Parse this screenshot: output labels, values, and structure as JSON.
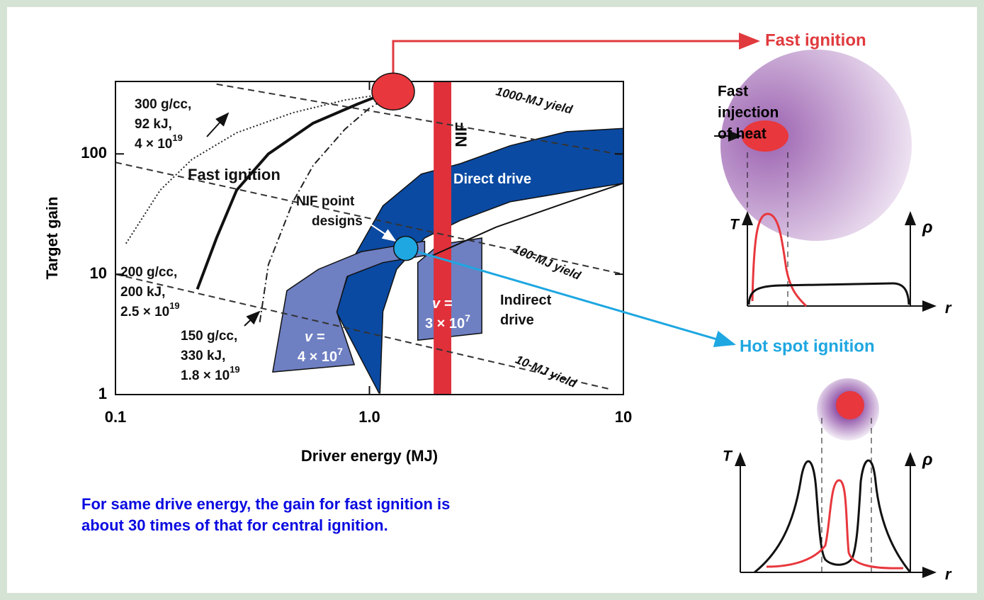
{
  "chart_data": {
    "type": "line",
    "x_label": "Driver energy (MJ)",
    "y_label": "Target gain",
    "xlim": [
      0.1,
      10
    ],
    "ylim": [
      1,
      400
    ],
    "log_x": true,
    "log_y": true,
    "xticks": [
      0.1,
      {
        "value": 1,
        "label": "1.0"
      },
      10
    ],
    "yticks": [
      1,
      10,
      100
    ],
    "series": [
      {
        "label": [
          "300 g/cc,",
          "92 kJ,",
          "4 × 10"
        ],
        "label_sup": "19",
        "style": "dotted",
        "color": "#222222",
        "x": [
          0.11,
          0.15,
          0.2,
          0.3,
          0.5,
          0.8,
          1.2
        ],
        "values": [
          18,
          50,
          90,
          150,
          220,
          280,
          320
        ]
      },
      {
        "label": [
          "200 g/cc,",
          "200 kJ,",
          "2.5 × 10"
        ],
        "label_sup": "19",
        "style": "thick",
        "color": "#111111",
        "x": [
          0.21,
          0.25,
          0.3,
          0.4,
          0.6,
          0.9,
          1.2
        ],
        "values": [
          7.5,
          20,
          50,
          100,
          180,
          260,
          330
        ]
      },
      {
        "label": [
          "150 g/cc,",
          "330 kJ,",
          "1.8 × 10"
        ],
        "label_sup": "19",
        "style": "dashdot",
        "color": "#222222",
        "x": [
          0.37,
          0.4,
          0.5,
          0.6,
          0.8,
          1.0,
          1.3
        ],
        "values": [
          4,
          12,
          40,
          80,
          160,
          240,
          330
        ]
      },
      {
        "label": [
          "1000-MJ yield"
        ],
        "style": "dashed",
        "color": "#333333",
        "x": [
          0.25,
          10
        ],
        "values": [
          380,
          98
        ]
      },
      {
        "label": [
          "100-MJ yield"
        ],
        "style": "dashed",
        "color": "#333333",
        "x": [
          0.1,
          10
        ],
        "values": [
          85,
          10
        ]
      },
      {
        "label": [
          "10-MJ yield"
        ],
        "style": "dashed",
        "color": "#333333",
        "x": [
          0.1,
          9
        ],
        "values": [
          10,
          1.1
        ]
      },
      {
        "style": "solid",
        "color": "#111111",
        "x": [
          1.77,
          3.15,
          5.98,
          10
        ],
        "values": [
          14.3,
          24.6,
          39.5,
          57
        ]
      }
    ],
    "regions": [
      {
        "color": "#0b4aa2",
        "x": [
          1.09,
          0.74,
          0.87,
          1.13,
          1.6,
          2.28,
          3.58,
          5.98,
          10,
          10,
          5.98,
          3.58,
          2.28,
          1.65,
          1.28,
          1.13,
          1.1
        ],
        "values": [
          1.03,
          4.9,
          14,
          37,
          68,
          83,
          117,
          153,
          163,
          57,
          48,
          40,
          28,
          20,
          11,
          4.9,
          1.03
        ]
      },
      {
        "color": "#6e7fc2",
        "x": [
          0.416,
          0.473,
          0.63,
          0.93,
          1.36,
          1.65,
          1.65,
          1.13,
          0.817,
          0.744,
          0.872
        ],
        "values": [
          1.54,
          7.3,
          11,
          15.4,
          17.6,
          18.8,
          14.3,
          12.5,
          9.6,
          4.86,
          1.77
        ]
      },
      {
        "color": "#6e7fc2",
        "x": [
          1.55,
          1.55,
          1.88,
          2.77,
          2.77,
          2.3
        ],
        "values": [
          2.83,
          12.5,
          17.6,
          20,
          3.24,
          3.1
        ]
      }
    ],
    "nif": {
      "label": "NIF",
      "color": "#e0303a",
      "x": [
        1.79,
        2.1
      ]
    },
    "markers": [
      {
        "color": "#e8373d",
        "x": 1.24,
        "y": 330
      },
      {
        "color": "#1ea7e1",
        "x": 1.39,
        "y": 16.4
      }
    ],
    "annotations": [
      {
        "text": [
          "Fast ignition"
        ],
        "color": "#111111"
      },
      {
        "text": [
          "Direct drive"
        ],
        "color": "#ffffff"
      },
      {
        "text": [
          "NIF point",
          "designs"
        ],
        "color": "#111111"
      },
      {
        "text": [
          "Indirect",
          "drive"
        ],
        "color": "#111111"
      },
      {
        "text": [
          "v =",
          "4 × 10"
        ],
        "sup": "7",
        "color": "#ffffff"
      },
      {
        "text": [
          "v =",
          "3 × 10"
        ],
        "sup": "7",
        "color": "#ffffff"
      }
    ]
  },
  "diagrams": {
    "fast": {
      "title": "Fast ignition",
      "injection": [
        "Fast",
        "injection",
        "of heat"
      ],
      "t": "T",
      "rho": "ρ",
      "r": "r"
    },
    "hot": {
      "title": "Hot spot ignition",
      "t": "T",
      "rho": "ρ",
      "r": "r"
    }
  },
  "note": [
    "For same drive energy, the gain for fast ignition is",
    "about 30 times of that for central ignition."
  ]
}
